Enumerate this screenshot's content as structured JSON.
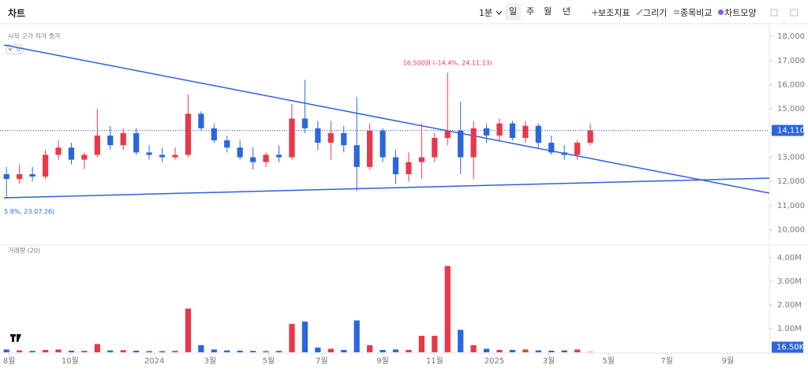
{
  "toolbar": {
    "title": "차트",
    "interval": "1분",
    "periods": [
      "일",
      "주",
      "월",
      "년"
    ],
    "tools": [
      "보조지표",
      "그리기",
      "종목비교",
      "차트모양"
    ]
  },
  "chart_data": [
    {
      "type": "candlestick",
      "legend": "시작 고가 저가 종가",
      "overlay_count": 0,
      "annotations": [
        "16,500원 (-14.4%, 24.11.13)",
        "5.9%, 23.07.26)"
      ],
      "open": [
        12300,
        12100,
        12300,
        12200,
        13100,
        13400,
        12900,
        13100,
        13900,
        13500,
        14000,
        13200,
        13100,
        13000,
        13100,
        14800,
        14200,
        13700,
        13400,
        13000,
        12800,
        13100,
        13000,
        14600,
        14200,
        13600,
        14000,
        13500,
        12600,
        14100,
        13000,
        12300,
        12800,
        13000,
        13800,
        14100,
        13000,
        14200,
        13900,
        14400,
        13800,
        14300,
        13600,
        13200,
        13100,
        13600
      ],
      "high": [
        12600,
        12700,
        12600,
        13300,
        13700,
        13600,
        13200,
        15000,
        14300,
        14200,
        14200,
        13500,
        13400,
        13400,
        15600,
        14900,
        14400,
        13900,
        13700,
        13400,
        13200,
        13500,
        15200,
        16200,
        14500,
        14500,
        14300,
        15500,
        14400,
        14200,
        13300,
        13200,
        14400,
        14000,
        16500,
        15300,
        14500,
        14400,
        14600,
        14500,
        14500,
        14400,
        13900,
        13500,
        13700,
        14400
      ],
      "low": [
        11300,
        11900,
        12000,
        12100,
        12900,
        12700,
        12500,
        13000,
        13300,
        13300,
        13100,
        12900,
        12800,
        12900,
        13000,
        14100,
        13600,
        13200,
        12900,
        12500,
        12600,
        12800,
        12900,
        14000,
        13300,
        12900,
        13200,
        11600,
        12500,
        12800,
        11900,
        12000,
        12100,
        12800,
        13500,
        12300,
        12100,
        13600,
        13700,
        13700,
        13600,
        13400,
        13100,
        12900,
        12900,
        13500
      ],
      "close": [
        12100,
        12300,
        12200,
        13100,
        13400,
        12900,
        13100,
        13900,
        13500,
        14000,
        13200,
        13100,
        13000,
        13100,
        14800,
        14200,
        13700,
        13400,
        13000,
        12800,
        13100,
        13000,
        14600,
        14200,
        13600,
        14000,
        13500,
        12600,
        14100,
        13000,
        12300,
        12800,
        13000,
        13800,
        14100,
        13000,
        14200,
        13900,
        14400,
        13800,
        14300,
        13600,
        13200,
        13100,
        13600,
        14110
      ],
      "up_color": "#e8394a",
      "down_color": "#2b66de",
      "current_price": {
        "value": 14110,
        "label": "14,110"
      },
      "ylim": [
        9400,
        18200
      ],
      "yticks": [
        {
          "value": 10000,
          "label": "10,000"
        },
        {
          "value": 11000,
          "label": "11,000"
        },
        {
          "value": 12000,
          "label": "12,000"
        },
        {
          "value": 13000,
          "label": "13,000"
        },
        {
          "value": 14000,
          "label": "14,000"
        },
        {
          "value": 15000,
          "label": "15,000"
        },
        {
          "value": 16000,
          "label": "16,000"
        },
        {
          "value": 17000,
          "label": "17,000"
        },
        {
          "value": 18000,
          "label": "18,000"
        }
      ],
      "xlim": [
        -0.5,
        58.8
      ],
      "xticks": [
        {
          "value": 0.2,
          "label": "8월"
        },
        {
          "value": 4.9,
          "label": "10월"
        },
        {
          "value": 11.4,
          "label": "2024"
        },
        {
          "value": 15.7,
          "label": "3월"
        },
        {
          "value": 20.2,
          "label": "5월"
        },
        {
          "value": 24.3,
          "label": "7월"
        },
        {
          "value": 29.0,
          "label": "9월"
        },
        {
          "value": 33.0,
          "label": "11월"
        },
        {
          "value": 37.6,
          "label": "2025"
        },
        {
          "value": 41.8,
          "label": "3월"
        },
        {
          "value": 46.4,
          "label": "5월"
        },
        {
          "value": 50.9,
          "label": "7월"
        },
        {
          "value": 55.6,
          "label": "9월"
        }
      ]
    },
    {
      "type": "bar",
      "title": "거래량 (20)",
      "values": [
        0.12,
        0.08,
        0.06,
        0.1,
        0.12,
        0.07,
        0.06,
        0.35,
        0.08,
        0.09,
        0.07,
        0.05,
        0.05,
        0.06,
        1.85,
        0.3,
        0.12,
        0.08,
        0.07,
        0.06,
        0.05,
        0.06,
        1.2,
        1.3,
        0.2,
        0.15,
        0.1,
        1.35,
        0.3,
        0.1,
        0.12,
        0.1,
        0.7,
        0.7,
        3.65,
        0.95,
        0.3,
        0.15,
        0.1,
        0.1,
        0.12,
        0.08,
        0.07,
        0.08,
        0.12,
        0.0165
      ],
      "current": {
        "value": 0.0165,
        "label": "16.50K"
      },
      "ylim": [
        0,
        4.4
      ],
      "yticks": [
        {
          "value": 1,
          "label": "1.00M"
        },
        {
          "value": 2,
          "label": "2.00M"
        },
        {
          "value": 3,
          "label": "3.00M"
        },
        {
          "value": 4,
          "label": "4.00M"
        }
      ]
    }
  ]
}
